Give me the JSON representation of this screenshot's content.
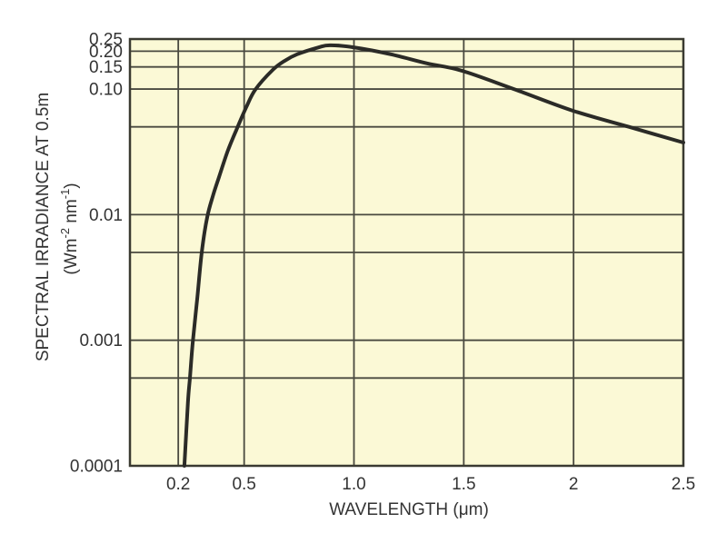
{
  "page": {
    "background": "#ffffff"
  },
  "style": {
    "plot_background": "#FBF9D6",
    "grid_color": "#4a4a40",
    "frame_color": "#3a3a31",
    "curve_color": "#2b2b27",
    "text_color": "#333333"
  },
  "chart_data": {
    "type": "line",
    "title": "",
    "xlabel": "WAVELENGTH (μm)",
    "ylabel": "SPECTRAL IRRADIANCE AT 0.5m",
    "ylabel_units": "(Wm⁻² nm⁻¹)",
    "ylabel_units_parts": [
      {
        "text": "(Wm"
      },
      {
        "text": "-2",
        "super": true
      },
      {
        "text": " nm"
      },
      {
        "text": "-1",
        "super": true
      },
      {
        "text": ")"
      }
    ],
    "x_scale": "linear",
    "y_scale": "log",
    "xlim": [
      -0.02,
      2.5
    ],
    "ylim": [
      0.0001,
      0.25
    ],
    "grid": true,
    "legend": false,
    "x_ticks": [
      {
        "value": 0.2,
        "label": "0.2"
      },
      {
        "value": 0.5,
        "label": "0.5"
      },
      {
        "value": 1.0,
        "label": "1.0"
      },
      {
        "value": 1.5,
        "label": "1.5"
      },
      {
        "value": 2.0,
        "label": "2"
      },
      {
        "value": 2.5,
        "label": "2.5"
      }
    ],
    "y_ticks": [
      {
        "value": 0.25,
        "label": "0.25"
      },
      {
        "value": 0.2,
        "label": "0.20"
      },
      {
        "value": 0.15,
        "label": "0.15"
      },
      {
        "value": 0.1,
        "label": "0.10"
      },
      {
        "value": 0.01,
        "label": "0.01"
      },
      {
        "value": 0.001,
        "label": "0.001"
      },
      {
        "value": 0.0001,
        "label": "0.0001"
      }
    ],
    "x_gridlines": [
      0.2,
      0.5,
      1.0,
      1.5,
      2.0
    ],
    "y_gridlines": [
      0.2,
      0.15,
      0.1,
      0.05,
      0.01,
      0.005,
      0.001,
      0.0005
    ],
    "series": [
      {
        "name": "spectral irradiance at 0.5 m",
        "points": [
          [
            0.228,
            0.0001
          ],
          [
            0.244,
            0.00032
          ],
          [
            0.253,
            0.0005
          ],
          [
            0.266,
            0.00096
          ],
          [
            0.287,
            0.0022
          ],
          [
            0.307,
            0.005
          ],
          [
            0.332,
            0.0096
          ],
          [
            0.36,
            0.0145
          ],
          [
            0.386,
            0.02
          ],
          [
            0.425,
            0.032
          ],
          [
            0.464,
            0.047
          ],
          [
            0.51,
            0.072
          ],
          [
            0.551,
            0.099
          ],
          [
            0.63,
            0.142
          ],
          [
            0.685,
            0.168
          ],
          [
            0.741,
            0.189
          ],
          [
            0.837,
            0.214
          ],
          [
            0.89,
            0.223
          ],
          [
            0.998,
            0.215
          ],
          [
            1.168,
            0.189
          ],
          [
            1.333,
            0.16
          ],
          [
            1.49,
            0.14
          ],
          [
            1.734,
            0.099
          ],
          [
            1.999,
            0.067
          ],
          [
            2.252,
            0.05
          ],
          [
            2.5,
            0.0375
          ]
        ]
      }
    ]
  }
}
